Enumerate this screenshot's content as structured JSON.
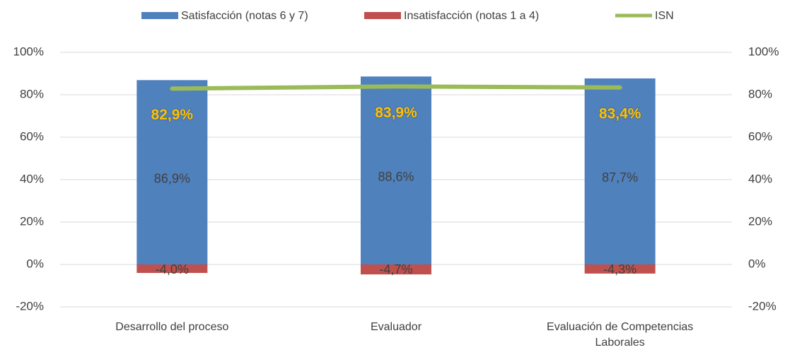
{
  "chart_data": {
    "type": "bar",
    "categories": [
      "Desarrollo del proceso",
      "Evaluador",
      "Evaluación de Competencias Laborales"
    ],
    "series": [
      {
        "name": "Satisfacción (notas 6 y 7)",
        "color": "#4f81bd",
        "type": "bar",
        "values": [
          86.9,
          88.6,
          87.7
        ],
        "value_labels": [
          "86,9%",
          "88,6%",
          "87,7%"
        ]
      },
      {
        "name": "Insatisfacción (notas 1 a 4)",
        "color": "#c0504d",
        "type": "bar",
        "values": [
          -4.0,
          -4.7,
          -4.3
        ],
        "value_labels": [
          "-4,0%",
          "-4,7%",
          "-4,3%"
        ]
      },
      {
        "name": "ISN",
        "color": "#9bbb59",
        "type": "line",
        "values": [
          82.9,
          83.9,
          83.4
        ],
        "value_labels": [
          "82,9%",
          "83,9%",
          "83,4%"
        ]
      }
    ],
    "ylim": [
      -20,
      100
    ],
    "yticks": [
      {
        "value": -20,
        "label": "-20%"
      },
      {
        "value": 0,
        "label": "0%"
      },
      {
        "value": 20,
        "label": "20%"
      },
      {
        "value": 40,
        "label": "40%"
      },
      {
        "value": 60,
        "label": "60%"
      },
      {
        "value": 80,
        "label": "80%"
      },
      {
        "value": 100,
        "label": "100%"
      }
    ],
    "y2lim": [
      -20,
      100
    ],
    "y2ticks": [
      {
        "value": -20,
        "label": "-20%"
      },
      {
        "value": 0,
        "label": "0%"
      },
      {
        "value": 20,
        "label": "20%"
      },
      {
        "value": 40,
        "label": "40%"
      },
      {
        "value": 60,
        "label": "60%"
      },
      {
        "value": 80,
        "label": "80%"
      },
      {
        "value": 100,
        "label": "100%"
      }
    ],
    "grid": true,
    "legend": "top"
  }
}
